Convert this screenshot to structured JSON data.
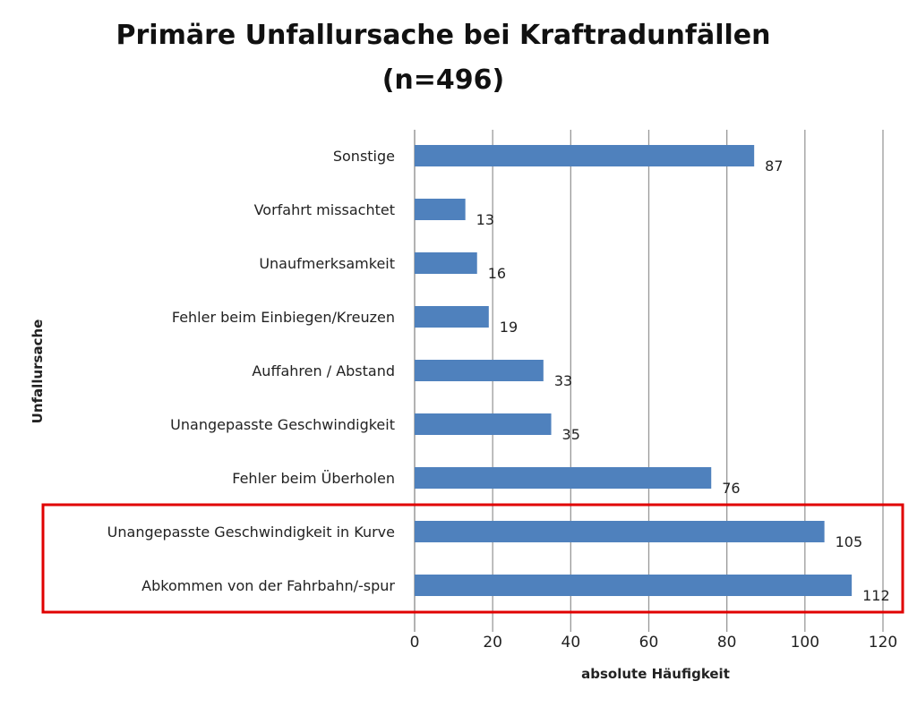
{
  "chart_data": {
    "type": "bar",
    "orientation": "horizontal",
    "title": "Primäre Unfallursache bei Kraftradunfällen",
    "subtitle": "(n=496)",
    "xlabel": "absolute Häufigkeit",
    "ylabel": "Unfallursache",
    "xlim": [
      0,
      120
    ],
    "xticks": [
      "0",
      "20",
      "40",
      "60",
      "80",
      "100",
      "120"
    ],
    "grid": true,
    "bar_color": "#4f81bd",
    "highlight_color": "#e00000",
    "categories": [
      "Sonstige",
      "Vorfahrt missachtet",
      "Unaufmerksamkeit",
      "Fehler beim Einbiegen/Kreuzen",
      "Auffahren / Abstand",
      "Unangepasste Geschwindigkeit",
      "Fehler beim Überholen",
      "Unangepasste Geschwindigkeit in Kurve",
      "Abkommen von der Fahrbahn/-spur"
    ],
    "values": [
      87,
      13,
      16,
      19,
      33,
      35,
      76,
      105,
      112
    ],
    "value_labels": [
      "87",
      "13",
      "16",
      "19",
      "33",
      "35",
      "76",
      "105",
      "112"
    ],
    "highlighted_categories": [
      "Unangepasste Geschwindigkeit in Kurve",
      "Abkommen von der Fahrbahn/-spur"
    ]
  }
}
